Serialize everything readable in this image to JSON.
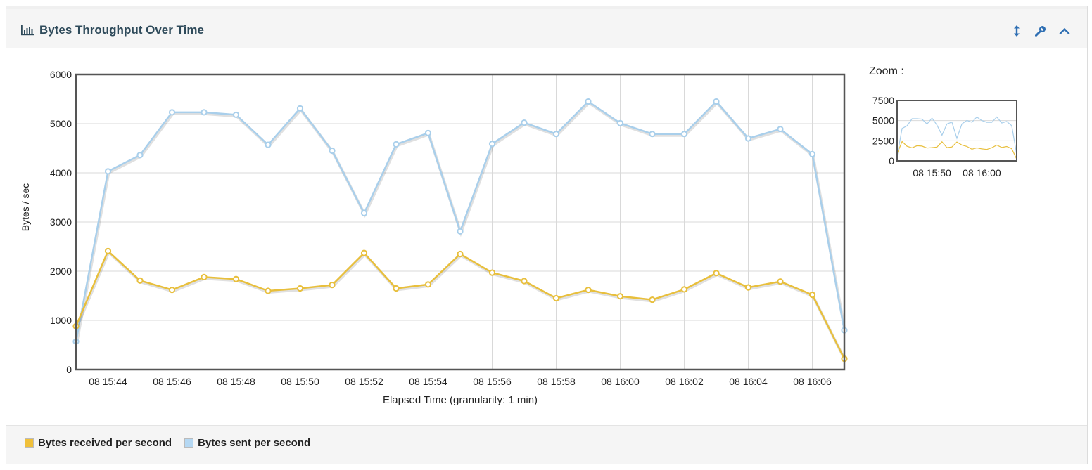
{
  "panel": {
    "title": "Bytes Throughput Over Time",
    "title_icon": "bar-chart-icon",
    "tools": [
      {
        "name": "resize-icon"
      },
      {
        "name": "wrench-icon"
      },
      {
        "name": "collapse-icon"
      }
    ]
  },
  "zoom": {
    "label": "Zoom :",
    "y_ticks": [
      "7500",
      "5000",
      "2500",
      "0"
    ],
    "x_ticks": [
      "08 15:50",
      "08 16:00"
    ],
    "ylim": [
      0,
      7500
    ]
  },
  "chart_data": {
    "type": "line",
    "title": "Bytes Throughput Over Time",
    "xlabel": "Elapsed Time (granularity: 1 min)",
    "ylabel": "Bytes / sec",
    "ylim": [
      0,
      6000
    ],
    "xlim": [
      "08 15:43",
      "08 16:07"
    ],
    "y_ticks": [
      "0",
      "1000",
      "2000",
      "3000",
      "4000",
      "5000",
      "6000"
    ],
    "x_tick_labels": [
      "08 15:44",
      "08 15:46",
      "08 15:48",
      "08 15:50",
      "08 15:52",
      "08 15:54",
      "08 15:56",
      "08 15:58",
      "08 16:00",
      "08 16:02",
      "08 16:04",
      "08 16:06"
    ],
    "x": [
      "08 15:43",
      "08 15:44",
      "08 15:45",
      "08 15:46",
      "08 15:47",
      "08 15:48",
      "08 15:49",
      "08 15:50",
      "08 15:51",
      "08 15:52",
      "08 15:53",
      "08 15:54",
      "08 15:55",
      "08 15:56",
      "08 15:57",
      "08 15:58",
      "08 15:59",
      "08 16:00",
      "08 16:01",
      "08 16:02",
      "08 16:03",
      "08 16:04",
      "08 16:05",
      "08 16:06",
      "08 16:07"
    ],
    "grid": true,
    "legend_position": "bottom-left",
    "series": [
      {
        "name": "Bytes received per second",
        "color": "#e8bf3c",
        "values": [
          880,
          2410,
          1810,
          1620,
          1880,
          1840,
          1600,
          1650,
          1720,
          2370,
          1650,
          1730,
          2350,
          1970,
          1800,
          1450,
          1620,
          1490,
          1420,
          1630,
          1960,
          1670,
          1790,
          1520,
          220
        ]
      },
      {
        "name": "Bytes sent per second",
        "color": "#a9cfeb",
        "values": [
          570,
          4030,
          4360,
          5230,
          5230,
          5180,
          4570,
          5310,
          4450,
          3180,
          4580,
          4810,
          2810,
          4590,
          5020,
          4790,
          5450,
          5010,
          4790,
          4790,
          5450,
          4700,
          4890,
          4380,
          800
        ]
      }
    ]
  },
  "legend": [
    {
      "label": "Bytes received per second",
      "color": "#f0c03a"
    },
    {
      "label": "Bytes sent per second",
      "color": "#b5d8f3"
    }
  ]
}
